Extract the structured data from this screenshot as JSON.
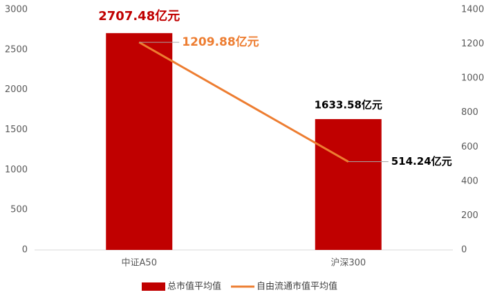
{
  "chart_data": {
    "type": "bar",
    "categories": [
      "中证A50",
      "沪深300"
    ],
    "series": [
      {
        "name": "总市值平均值",
        "color": "#c00000",
        "type": "bar",
        "values": [
          2707.48,
          1633.58
        ],
        "value_labels": [
          "2707.48亿元",
          "1633.58亿元"
        ]
      },
      {
        "name": "自由流通市值平均值",
        "color": "#ed7d31",
        "type": "line",
        "axis": "y2",
        "values": [
          1209.88,
          514.24
        ],
        "value_labels": [
          "1209.88亿元",
          "514.24亿元"
        ]
      }
    ],
    "ylim": [
      0,
      3000
    ],
    "yticks": [
      0,
      500,
      1000,
      1500,
      2000,
      2500,
      3000
    ],
    "y2lim": [
      0,
      1400
    ],
    "y2ticks": [
      0,
      200,
      400,
      600,
      800,
      1000,
      1200,
      1400
    ],
    "grid": false,
    "legend": "bottom"
  }
}
